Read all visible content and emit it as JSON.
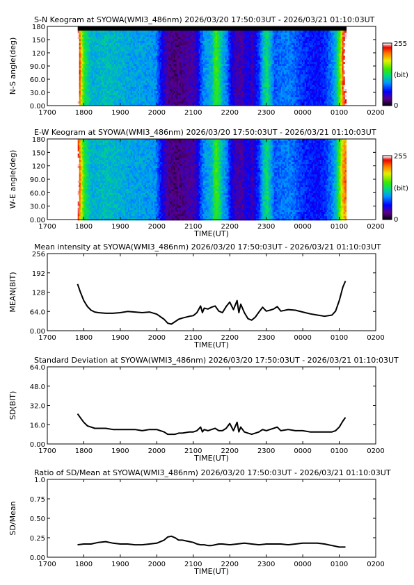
{
  "chart_data": [
    {
      "type": "heatmap",
      "title": "S-N Keogram at SYOWA(WMI3_486nm)    2026/03/20 17:50:03UT - 2026/03/21 01:10:03UT",
      "xlabel": "",
      "ylabel": "N-S angle(deg)",
      "xticks": [
        "1700",
        "1800",
        "1900",
        "2000",
        "2100",
        "2200",
        "2300",
        "0000",
        "0100",
        "0200"
      ],
      "yticks": [
        "0.00",
        "30.0",
        "60.0",
        "90.0",
        "120",
        "150",
        "180"
      ],
      "ylim": [
        0,
        180
      ],
      "colorbar": {
        "min": "0",
        "max": "255",
        "unit": "(bit)",
        "range": [
          0,
          255
        ]
      },
      "data_start_hours": 17.834,
      "data_end_hours": 25.168,
      "sample_hours": [
        17.83,
        17.9,
        18.0,
        18.3,
        18.6,
        19.0,
        19.3,
        19.6,
        19.95,
        20.1,
        20.3,
        20.5,
        20.7,
        20.8,
        21.0,
        21.1,
        21.2,
        21.3,
        21.4,
        21.5,
        21.6,
        21.7,
        21.8,
        21.9,
        22.0,
        22.1,
        22.2,
        22.25,
        22.3,
        22.4,
        22.5,
        22.6,
        22.7,
        22.8,
        22.9,
        23.0,
        23.1,
        23.2,
        23.4,
        23.6,
        23.8,
        24.0,
        24.2,
        24.4,
        24.6,
        24.8,
        24.9,
        25.0,
        25.1,
        25.17
      ],
      "sample_levels": [
        220,
        150,
        110,
        105,
        110,
        105,
        100,
        100,
        95,
        60,
        30,
        25,
        30,
        35,
        40,
        50,
        80,
        95,
        100,
        110,
        150,
        130,
        100,
        90,
        60,
        45,
        35,
        40,
        35,
        50,
        55,
        40,
        60,
        75,
        110,
        130,
        105,
        80,
        85,
        90,
        80,
        70,
        65,
        60,
        70,
        90,
        110,
        140,
        200,
        210
      ],
      "dark_band_deg": [
        [
          175,
          180
        ],
        [
          0,
          2
        ]
      ]
    },
    {
      "type": "heatmap",
      "title": "E-W Keogram at SYOWA(WMI3_486nm)    2026/03/20 17:50:03UT - 2026/03/21 01:10:03UT",
      "xlabel": "TIME(UT)",
      "ylabel": "W-E angle(deg)",
      "xticks": [
        "1700",
        "1800",
        "1900",
        "2000",
        "2100",
        "2200",
        "2300",
        "0000",
        "0100",
        "0200"
      ],
      "yticks": [
        "0.00",
        "30.0",
        "60.0",
        "90.0",
        "120",
        "150",
        "180"
      ],
      "ylim": [
        0,
        180
      ],
      "colorbar": {
        "min": "0",
        "max": "255",
        "unit": "(bit)",
        "range": [
          0,
          255
        ]
      },
      "data_start_hours": 17.834,
      "data_end_hours": 25.168,
      "sample_hours": [
        17.83,
        17.9,
        18.0,
        18.3,
        18.6,
        19.0,
        19.3,
        19.6,
        19.95,
        20.1,
        20.3,
        20.5,
        20.7,
        20.8,
        21.0,
        21.1,
        21.2,
        21.3,
        21.4,
        21.5,
        21.6,
        21.7,
        21.8,
        21.9,
        22.0,
        22.1,
        22.2,
        22.25,
        22.3,
        22.4,
        22.5,
        22.6,
        22.7,
        22.8,
        22.9,
        23.0,
        23.1,
        23.2,
        23.4,
        23.6,
        23.8,
        24.0,
        24.2,
        24.4,
        24.6,
        24.8,
        24.9,
        25.0,
        25.1,
        25.17
      ],
      "sample_levels": [
        200,
        150,
        110,
        105,
        110,
        105,
        100,
        100,
        95,
        60,
        30,
        25,
        30,
        35,
        40,
        50,
        80,
        95,
        100,
        110,
        150,
        130,
        100,
        90,
        60,
        45,
        35,
        40,
        35,
        50,
        55,
        40,
        60,
        75,
        110,
        130,
        105,
        80,
        85,
        90,
        80,
        70,
        65,
        60,
        70,
        90,
        110,
        140,
        170,
        160
      ],
      "dark_band_deg": []
    },
    {
      "type": "line",
      "title": "Mean intensity at SYOWA(WMI3_486nm)    2026/03/20 17:50:03UT - 2026/03/21 01:10:03UT",
      "xlabel": "TIME(UT)",
      "ylabel": "MEAN(BIT)",
      "xticks": [
        "1700",
        "1800",
        "1900",
        "2000",
        "2100",
        "2200",
        "2300",
        "0000",
        "0100",
        "0200"
      ],
      "yticks": [
        "0.00",
        "64.0",
        "128",
        "192",
        "256"
      ],
      "ylim": [
        0,
        256
      ],
      "x_hours": [
        17.83,
        17.9,
        18.0,
        18.1,
        18.2,
        18.3,
        18.4,
        18.6,
        18.8,
        19.0,
        19.2,
        19.4,
        19.6,
        19.8,
        20.0,
        20.2,
        20.3,
        20.4,
        20.5,
        20.6,
        20.7,
        20.9,
        21.0,
        21.1,
        21.2,
        21.25,
        21.3,
        21.4,
        21.5,
        21.6,
        21.7,
        21.8,
        21.9,
        22.0,
        22.1,
        22.2,
        22.25,
        22.3,
        22.4,
        22.5,
        22.6,
        22.7,
        22.8,
        22.9,
        23.0,
        23.1,
        23.2,
        23.3,
        23.4,
        23.6,
        23.8,
        24.0,
        24.2,
        24.4,
        24.6,
        24.8,
        24.9,
        25.0,
        25.1,
        25.17
      ],
      "y": [
        155,
        130,
        100,
        80,
        68,
        62,
        60,
        58,
        58,
        60,
        64,
        62,
        60,
        62,
        55,
        38,
        25,
        22,
        30,
        38,
        42,
        48,
        50,
        60,
        82,
        60,
        75,
        72,
        78,
        82,
        65,
        60,
        80,
        95,
        70,
        100,
        60,
        88,
        60,
        40,
        35,
        45,
        62,
        78,
        65,
        68,
        72,
        80,
        65,
        70,
        68,
        62,
        56,
        52,
        48,
        52,
        65,
        100,
        145,
        165
      ]
    },
    {
      "type": "line",
      "title": "Standard Deviation at SYOWA(WMI3_486nm)    2026/03/20 17:50:03UT - 2026/03/21 01:10:03UT",
      "xlabel": "TIME(UT)",
      "ylabel": "SD(BIT)",
      "xticks": [
        "1700",
        "1800",
        "1900",
        "2000",
        "2100",
        "2200",
        "2300",
        "0000",
        "0100",
        "0200"
      ],
      "yticks": [
        "0.00",
        "16.0",
        "32.0",
        "48.0",
        "64.0"
      ],
      "ylim": [
        0,
        64
      ],
      "x_hours": [
        17.83,
        17.9,
        18.0,
        18.1,
        18.2,
        18.3,
        18.4,
        18.6,
        18.8,
        19.0,
        19.2,
        19.4,
        19.6,
        19.8,
        20.0,
        20.2,
        20.3,
        20.4,
        20.5,
        20.6,
        20.7,
        20.9,
        21.0,
        21.1,
        21.2,
        21.25,
        21.3,
        21.4,
        21.5,
        21.6,
        21.7,
        21.8,
        21.9,
        22.0,
        22.1,
        22.2,
        22.25,
        22.3,
        22.4,
        22.5,
        22.6,
        22.7,
        22.8,
        22.9,
        23.0,
        23.1,
        23.2,
        23.3,
        23.4,
        23.6,
        23.8,
        24.0,
        24.2,
        24.4,
        24.6,
        24.8,
        24.9,
        25.0,
        25.1,
        25.17
      ],
      "y": [
        25,
        22,
        18,
        15,
        14,
        13,
        13,
        13,
        12,
        12,
        12,
        12,
        11,
        12,
        12,
        10,
        8,
        8,
        8,
        9,
        9,
        10,
        10,
        11,
        14,
        10,
        12,
        11,
        12,
        13,
        11,
        11,
        13,
        17,
        11,
        18,
        10,
        14,
        10,
        9,
        8,
        9,
        10,
        12,
        11,
        12,
        13,
        14,
        11,
        12,
        11,
        11,
        10,
        10,
        10,
        10,
        11,
        14,
        19,
        22
      ]
    },
    {
      "type": "line",
      "title": "Ratio of SD/Mean at SYOWA(WMI3_486nm)    2026/03/20 17:50:03UT - 2026/03/21 01:10:03UT",
      "xlabel": "TIME(UT)",
      "ylabel": "SD/Mean",
      "xticks": [
        "1700",
        "1800",
        "1900",
        "2000",
        "2100",
        "2200",
        "2300",
        "0000",
        "0100",
        "0200"
      ],
      "yticks": [
        "0.00",
        "0.25",
        "0.50",
        "0.75",
        "1.0"
      ],
      "ylim": [
        0,
        1
      ],
      "x_hours": [
        17.83,
        18.0,
        18.2,
        18.4,
        18.6,
        18.8,
        19.0,
        19.2,
        19.4,
        19.6,
        19.8,
        20.0,
        20.2,
        20.3,
        20.4,
        20.5,
        20.6,
        20.7,
        20.9,
        21.0,
        21.1,
        21.2,
        21.3,
        21.4,
        21.5,
        21.6,
        21.7,
        21.8,
        22.0,
        22.2,
        22.4,
        22.6,
        22.8,
        23.0,
        23.2,
        23.4,
        23.6,
        23.8,
        24.0,
        24.2,
        24.4,
        24.6,
        24.8,
        25.0,
        25.17
      ],
      "y": [
        0.16,
        0.17,
        0.17,
        0.19,
        0.2,
        0.18,
        0.17,
        0.17,
        0.16,
        0.16,
        0.17,
        0.18,
        0.22,
        0.26,
        0.27,
        0.25,
        0.22,
        0.22,
        0.2,
        0.19,
        0.17,
        0.16,
        0.16,
        0.15,
        0.15,
        0.16,
        0.17,
        0.17,
        0.16,
        0.17,
        0.18,
        0.17,
        0.16,
        0.17,
        0.17,
        0.17,
        0.16,
        0.17,
        0.18,
        0.18,
        0.18,
        0.17,
        0.15,
        0.13,
        0.13
      ]
    }
  ]
}
